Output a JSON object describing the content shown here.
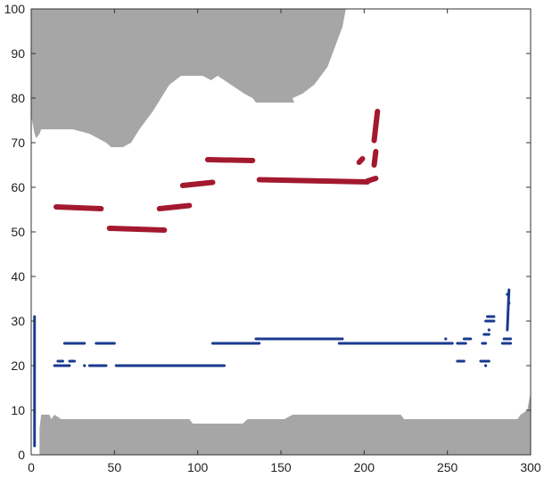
{
  "chart_data": {
    "type": "scatter",
    "title": "",
    "xlabel": "",
    "ylabel": "",
    "xlim": [
      0,
      300
    ],
    "ylim": [
      0,
      100
    ],
    "xticks": [
      0,
      50,
      100,
      150,
      200,
      250,
      300
    ],
    "yticks": [
      0,
      10,
      20,
      30,
      40,
      50,
      60,
      70,
      80,
      90,
      100
    ],
    "grid": false,
    "background_regions": [
      {
        "name": "",
        "color": "#a6a6a6",
        "points": [
          [
            0,
            100
          ],
          [
            0,
            76
          ],
          [
            2,
            72
          ],
          [
            3,
            71
          ],
          [
            5,
            72
          ],
          [
            6,
            73
          ],
          [
            25,
            73
          ],
          [
            35,
            72
          ],
          [
            45,
            70
          ],
          [
            48,
            69
          ],
          [
            55,
            69
          ],
          [
            60,
            70
          ],
          [
            65,
            73
          ],
          [
            73,
            77
          ],
          [
            78,
            80
          ],
          [
            83,
            83
          ],
          [
            90,
            85
          ],
          [
            103,
            85
          ],
          [
            108,
            84
          ],
          [
            112,
            85
          ],
          [
            116,
            84
          ],
          [
            120,
            83
          ],
          [
            124,
            82
          ],
          [
            128,
            81
          ],
          [
            133,
            80
          ],
          [
            135,
            79
          ],
          [
            155,
            79
          ],
          [
            158,
            79
          ],
          [
            157,
            80
          ],
          [
            163,
            81
          ],
          [
            170,
            83
          ],
          [
            178,
            87
          ],
          [
            183,
            92
          ],
          [
            187,
            96
          ],
          [
            189,
            100
          ]
        ]
      },
      {
        "name": "",
        "color": "#a6a6a6",
        "points": [
          [
            5,
            0
          ],
          [
            5,
            6
          ],
          [
            6,
            9
          ],
          [
            11,
            9
          ],
          [
            12,
            8
          ],
          [
            14,
            9
          ],
          [
            18,
            8
          ],
          [
            95,
            8
          ],
          [
            97,
            7
          ],
          [
            127,
            7
          ],
          [
            130,
            8
          ],
          [
            152,
            8
          ],
          [
            157,
            9
          ],
          [
            222,
            9
          ],
          [
            224,
            8
          ],
          [
            292,
            8
          ],
          [
            294,
            9
          ],
          [
            298,
            10
          ],
          [
            300,
            14
          ],
          [
            300,
            0
          ]
        ]
      }
    ],
    "series": [
      {
        "name": "",
        "color": "#a3192e",
        "segments": [
          {
            "x": [
              15,
              42
            ],
            "y": [
              55.6,
              55.2
            ]
          },
          {
            "x": [
              47,
              80
            ],
            "y": [
              50.8,
              50.4
            ]
          },
          {
            "x": [
              77,
              95
            ],
            "y": [
              55.2,
              55.9
            ]
          },
          {
            "x": [
              91,
              109
            ],
            "y": [
              60.4,
              61.1
            ]
          },
          {
            "x": [
              106,
              133
            ],
            "y": [
              66.2,
              66.0
            ]
          },
          {
            "x": [
              137,
              202
            ],
            "y": [
              61.7,
              61.2
            ]
          },
          {
            "x": [
              202,
              207
            ],
            "y": [
              61.4,
              62.0
            ]
          },
          {
            "x": [
              206,
              207
            ],
            "y": [
              65.0,
              68.0
            ]
          },
          {
            "x": [
              206,
              208
            ],
            "y": [
              70.5,
              77.0
            ]
          },
          {
            "x": [
              197,
              199
            ],
            "y": [
              65.6,
              66.4
            ]
          }
        ]
      },
      {
        "name": "",
        "color": "#1a3a8f",
        "segments": [
          {
            "x": [
              2,
              2
            ],
            "y": [
              2,
              31
            ]
          },
          {
            "x": [
              14,
              19
            ],
            "y": [
              20,
              20
            ]
          },
          {
            "x": [
              19,
              23
            ],
            "y": [
              20,
              20
            ]
          },
          {
            "x": [
              16,
              19
            ],
            "y": [
              21,
              21
            ]
          },
          {
            "x": [
              23,
              26
            ],
            "y": [
              21,
              21
            ]
          },
          {
            "x": [
              20,
              32
            ],
            "y": [
              25,
              25
            ]
          },
          {
            "x": [
              39,
              50
            ],
            "y": [
              25,
              25
            ]
          },
          {
            "x": [
              35,
              45
            ],
            "y": [
              20,
              20
            ]
          },
          {
            "x": [
              51,
              116
            ],
            "y": [
              20,
              20
            ]
          },
          {
            "x": [
              109,
              137
            ],
            "y": [
              25,
              25
            ]
          },
          {
            "x": [
              135,
              187
            ],
            "y": [
              26,
              26
            ]
          },
          {
            "x": [
              185,
              253
            ],
            "y": [
              25,
              25
            ]
          },
          {
            "x": [
              256,
              261
            ],
            "y": [
              25,
              25
            ]
          },
          {
            "x": [
              260,
              264
            ],
            "y": [
              26,
              26
            ]
          },
          {
            "x": [
              256,
              260
            ],
            "y": [
              21,
              21
            ]
          },
          {
            "x": [
              270,
              275
            ],
            "y": [
              21,
              21
            ]
          },
          {
            "x": [
              271,
              273
            ],
            "y": [
              25,
              25
            ]
          },
          {
            "x": [
              272,
              275
            ],
            "y": [
              27,
              27
            ]
          },
          {
            "x": [
              273,
              278
            ],
            "y": [
              30,
              30
            ]
          },
          {
            "x": [
              274,
              278
            ],
            "y": [
              31,
              31
            ]
          },
          {
            "x": [
              283,
              288
            ],
            "y": [
              25,
              25
            ]
          },
          {
            "x": [
              284,
              288
            ],
            "y": [
              26,
              26
            ]
          },
          {
            "x": [
              286,
              287
            ],
            "y": [
              28,
              37
            ]
          }
        ],
        "points": [
          {
            "x": 32,
            "y": 20.0
          },
          {
            "x": 249,
            "y": 26.0
          },
          {
            "x": 273,
            "y": 20.0
          },
          {
            "x": 275,
            "y": 28.0
          },
          {
            "x": 287,
            "y": 34.0
          },
          {
            "x": 286,
            "y": 36.0
          }
        ]
      }
    ]
  }
}
